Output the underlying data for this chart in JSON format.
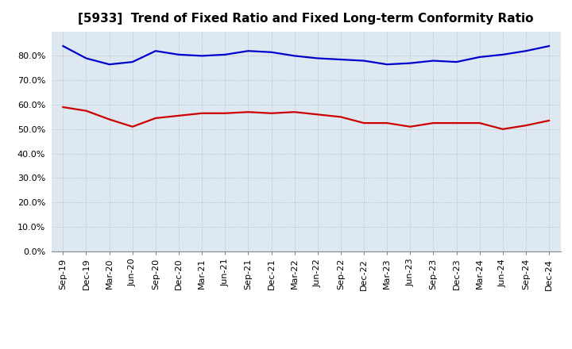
{
  "title": "[5933]  Trend of Fixed Ratio and Fixed Long-term Conformity Ratio",
  "x_labels": [
    "Sep-19",
    "Dec-19",
    "Mar-20",
    "Jun-20",
    "Sep-20",
    "Dec-20",
    "Mar-21",
    "Jun-21",
    "Sep-21",
    "Dec-21",
    "Mar-22",
    "Jun-22",
    "Sep-22",
    "Dec-22",
    "Mar-23",
    "Jun-23",
    "Sep-23",
    "Dec-23",
    "Mar-24",
    "Jun-24",
    "Sep-24",
    "Dec-24"
  ],
  "fixed_ratio": [
    84.0,
    79.0,
    76.5,
    77.5,
    82.0,
    80.5,
    80.0,
    80.5,
    82.0,
    81.5,
    80.0,
    79.0,
    78.5,
    78.0,
    76.5,
    77.0,
    78.0,
    77.5,
    79.5,
    80.5,
    82.0,
    84.0
  ],
  "fixed_lt_ratio": [
    59.0,
    57.5,
    54.0,
    51.0,
    54.5,
    55.5,
    56.5,
    56.5,
    57.0,
    56.5,
    57.0,
    56.0,
    55.0,
    52.5,
    52.5,
    51.0,
    52.5,
    52.5,
    52.5,
    50.0,
    51.5,
    53.5
  ],
  "fixed_ratio_color": "#0000CC",
  "fixed_lt_ratio_color": "#CC0000",
  "ylim": [
    0,
    90
  ],
  "yticks": [
    0,
    10,
    20,
    30,
    40,
    50,
    60,
    70,
    80
  ],
  "background_color": "#FFFFFF",
  "plot_bg_color": "#DDE8F0",
  "grid_color": "#AAAAAA",
  "legend_fixed_ratio": "Fixed Ratio",
  "legend_fixed_lt_ratio": "Fixed Long-term Conformity Ratio",
  "line_width": 1.6,
  "title_fontsize": 11,
  "tick_fontsize": 8,
  "legend_fontsize": 9
}
